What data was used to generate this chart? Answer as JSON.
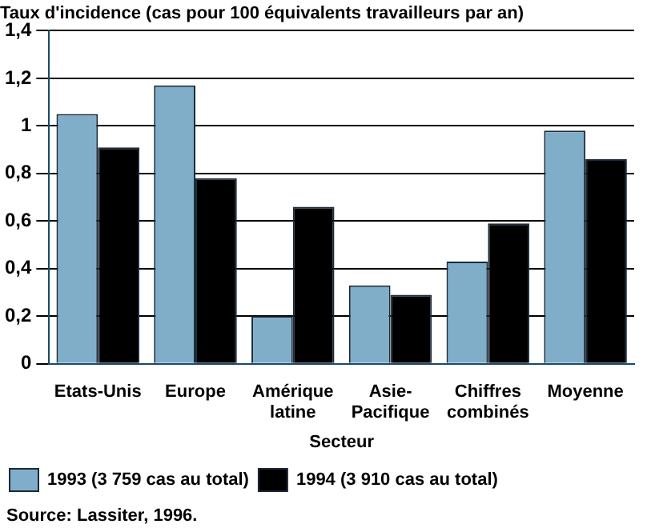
{
  "chart_data": {
    "type": "bar",
    "title": "Taux d'incidence (cas pour 100 équivalents travailleurs par an)",
    "xlabel": "Secteur",
    "categories": [
      "Etats-Unis",
      "Europe",
      "Amérique latine",
      "Asie-Pacifique",
      "Chiffres combinés",
      "Moyenne"
    ],
    "series": [
      {
        "name": "1993 (3 759 cas au total)",
        "color": "#80aec8",
        "values": [
          1.05,
          1.17,
          0.2,
          0.33,
          0.43,
          0.98
        ]
      },
      {
        "name": "1994 (3 910 cas au total)",
        "color": "#000000",
        "values": [
          0.91,
          0.78,
          0.66,
          0.29,
          0.59,
          0.86
        ]
      }
    ],
    "ylim": [
      0,
      1.4
    ],
    "yticks": [
      {
        "value": 0,
        "label": "0"
      },
      {
        "value": 0.2,
        "label": "0,2"
      },
      {
        "value": 0.4,
        "label": "0,4"
      },
      {
        "value": 0.6,
        "label": "0,6"
      },
      {
        "value": 0.8,
        "label": "0,8"
      },
      {
        "value": 1,
        "label": "1"
      },
      {
        "value": 1.2,
        "label": "1,2"
      },
      {
        "value": 1.4,
        "label": "1,4"
      }
    ],
    "grid": "y",
    "legend": "bottom",
    "annotations": [
      "Source: Lassiter, 1996."
    ]
  }
}
